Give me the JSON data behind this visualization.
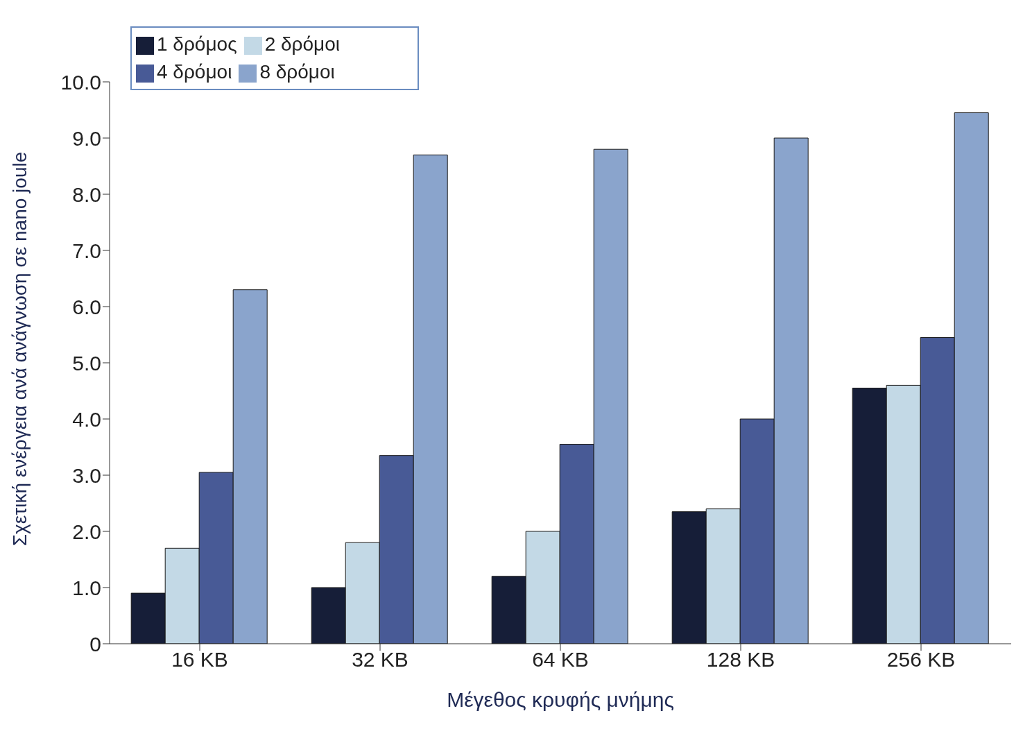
{
  "chart_data": {
    "type": "bar",
    "xlabel": "Μέγεθος κρυφής μνήμης",
    "ylabel": "Σχετική ενέργεια ανά ανάγνωση σε nano joule",
    "categories": [
      "16 KB",
      "32 KB",
      "64 KB",
      "128 KB",
      "256 KB"
    ],
    "series": [
      {
        "name": "1 δρόμος",
        "color": "#161e38",
        "values": [
          0.9,
          1.0,
          1.2,
          2.35,
          4.55
        ]
      },
      {
        "name": "2 δρόμοι",
        "color": "#c3d9e6",
        "values": [
          1.7,
          1.8,
          2.0,
          2.4,
          4.6
        ]
      },
      {
        "name": "4 δρόμοι",
        "color": "#485a96",
        "values": [
          3.05,
          3.35,
          3.55,
          4.0,
          5.45
        ]
      },
      {
        "name": "8 δρόμοι",
        "color": "#8aa4cc",
        "values": [
          6.3,
          8.7,
          8.8,
          9.0,
          9.45
        ]
      }
    ],
    "ylim": [
      0,
      10
    ],
    "yticks": [
      0,
      {
        "value": 1,
        "label": "1.0"
      },
      {
        "value": 2,
        "label": "2.0"
      },
      {
        "value": 3,
        "label": "3.0"
      },
      {
        "value": 4,
        "label": "4.0"
      },
      {
        "value": 5,
        "label": "5.0"
      },
      {
        "value": 6,
        "label": "6.0"
      },
      {
        "value": 7,
        "label": "7.0"
      },
      {
        "value": 8,
        "label": "8.0"
      },
      {
        "value": 9,
        "label": "9.0"
      },
      {
        "value": 10,
        "label": "10.0"
      }
    ],
    "grid": false,
    "legend": "top left"
  }
}
